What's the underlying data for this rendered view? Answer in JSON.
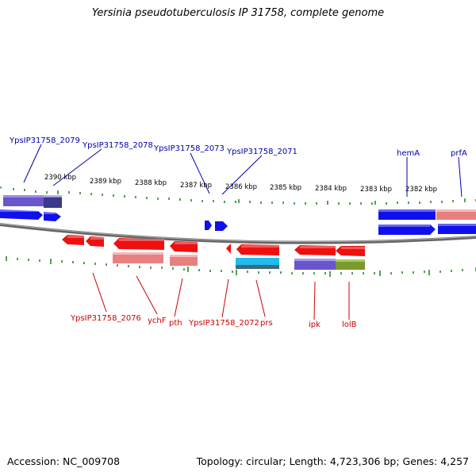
{
  "title": "Yersinia pseudotuberculosis IP 31758, complete genome",
  "footer": {
    "accession": "Accession: NC_009708",
    "stats": "Topology: circular; Length: 4,723,306 bp; Genes: 4,257"
  },
  "colors": {
    "forward_cds": "#1010ee",
    "reverse_cds": "#ee1010",
    "backbone": "#777777",
    "ticks": "#2a8a2a",
    "forward_label": "#0000aa",
    "reverse_label": "#cc0000",
    "cog_purple": "#6a55cc",
    "cog_pink": "#e88080",
    "cog_cyan": "#22bbee",
    "cog_olive": "#7a9a30"
  },
  "scale_labels": [
    "2390 kbp",
    "2389 kbp",
    "2388 kbp",
    "2387 kbp",
    "2386 kbp",
    "2385 kbp",
    "2384 kbp",
    "2383 kbp",
    "2382 kbp"
  ],
  "forward_labels": [
    "YpsIP31758_2079",
    "YpsIP31758_2078",
    "YpsIP31758_2073",
    "YpsIP31758_2071",
    "hemA",
    "prfA"
  ],
  "reverse_labels": [
    "YpsIP31758_2076",
    "ychF",
    "pth",
    "YpsIP31758_2072",
    "prs",
    "ipk",
    "lolB"
  ]
}
